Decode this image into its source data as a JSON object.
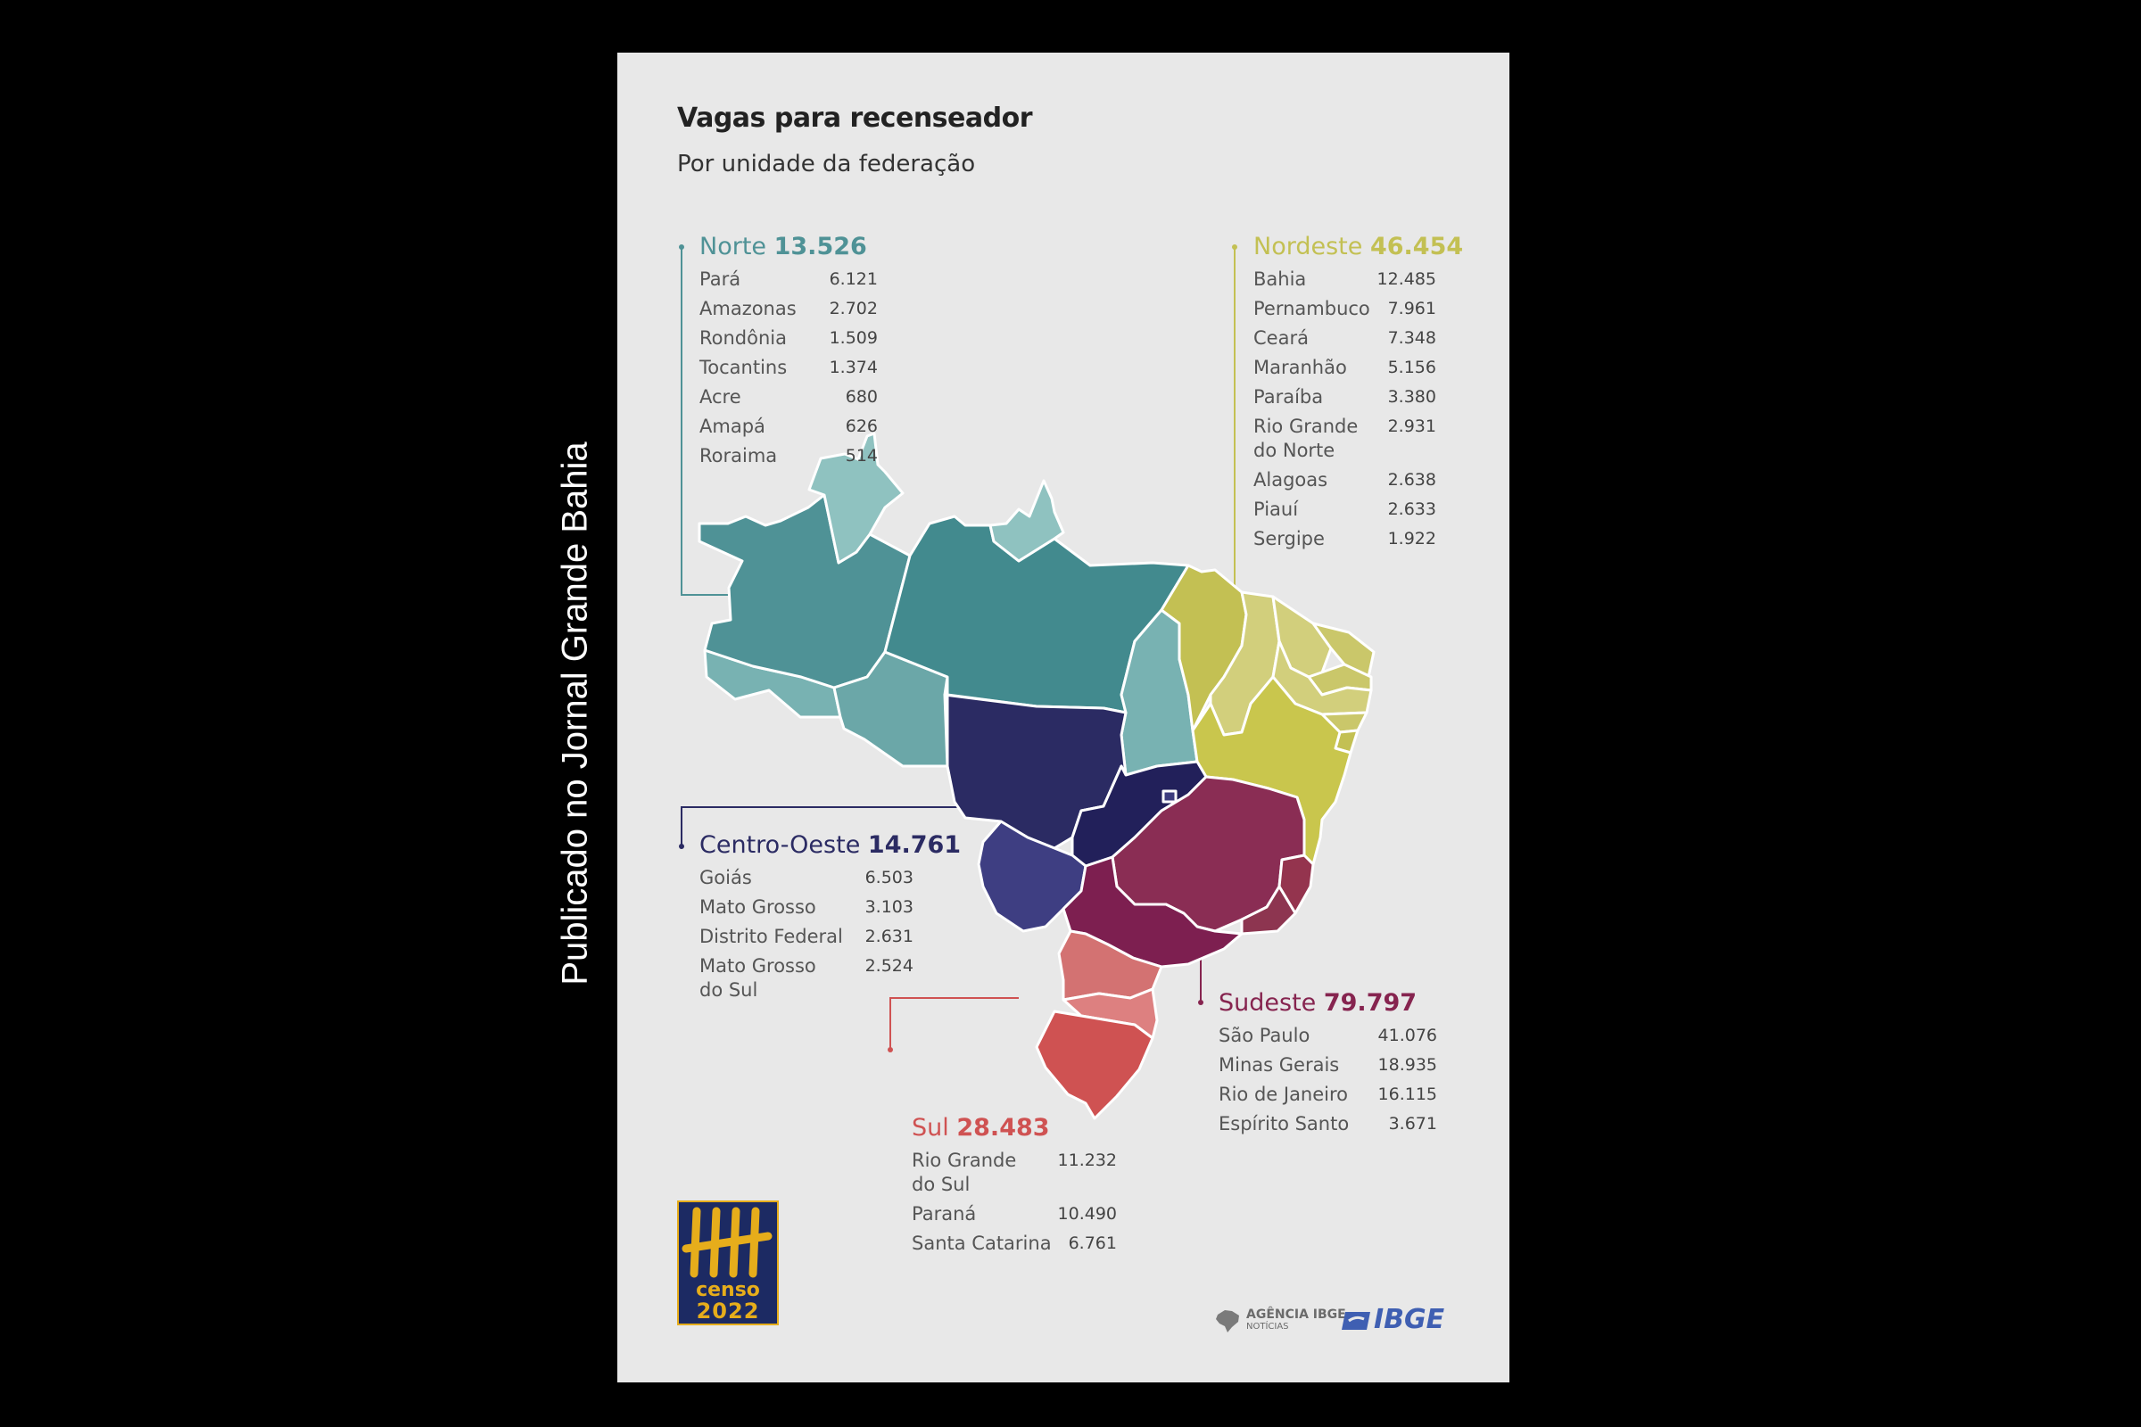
{
  "side_caption": "Publicado no Jornal Grande Bahia",
  "header": {
    "title": "Vagas para recenseador",
    "subtitle": "Por unidade da federação"
  },
  "regions": {
    "norte": {
      "name": "Norte",
      "total": "13.526",
      "color": "#4f9296",
      "states": [
        {
          "name": "Pará",
          "value": "6.121"
        },
        {
          "name": "Amazonas",
          "value": "2.702"
        },
        {
          "name": "Rondônia",
          "value": "1.509"
        },
        {
          "name": "Tocantins",
          "value": "1.374"
        },
        {
          "name": "Acre",
          "value": "680"
        },
        {
          "name": "Amapá",
          "value": "626"
        },
        {
          "name": "Roraima",
          "value": "514"
        }
      ]
    },
    "nordeste": {
      "name": "Nordeste",
      "total": "46.454",
      "color": "#c3c053",
      "states": [
        {
          "name": "Bahia",
          "value": "12.485"
        },
        {
          "name": "Pernambuco",
          "value": "7.961"
        },
        {
          "name": "Ceará",
          "value": "7.348"
        },
        {
          "name": "Maranhão",
          "value": "5.156"
        },
        {
          "name": "Paraíba",
          "value": "3.380"
        },
        {
          "name": "Rio Grande do Norte",
          "value": "2.931"
        },
        {
          "name": "Alagoas",
          "value": "2.638"
        },
        {
          "name": "Piauí",
          "value": "2.633"
        },
        {
          "name": "Sergipe",
          "value": "1.922"
        }
      ]
    },
    "centro_oeste": {
      "name": "Centro-Oeste",
      "total": "14.761",
      "color": "#2b2b63",
      "states": [
        {
          "name": "Goiás",
          "value": "6.503"
        },
        {
          "name": "Mato Grosso",
          "value": "3.103"
        },
        {
          "name": "Distrito Federal",
          "value": "2.631"
        },
        {
          "name": "Mato Grosso do Sul",
          "value": "2.524"
        }
      ]
    },
    "sudeste": {
      "name": "Sudeste",
      "total": "79.797",
      "color": "#86244f",
      "states": [
        {
          "name": "São Paulo",
          "value": "41.076"
        },
        {
          "name": "Minas Gerais",
          "value": "18.935"
        },
        {
          "name": "Rio de Janeiro",
          "value": "16.115"
        },
        {
          "name": "Espírito Santo",
          "value": "3.671"
        }
      ]
    },
    "sul": {
      "name": "Sul",
      "total": "28.483",
      "color": "#cf5252",
      "states": [
        {
          "name": "Rio Grande do Sul",
          "value": "11.232"
        },
        {
          "name": "Paraná",
          "value": "10.490"
        },
        {
          "name": "Santa Catarina",
          "value": "6.761"
        }
      ]
    }
  },
  "logos": {
    "censo_word": "censo",
    "censo_year": "2022",
    "agencia_line1": "AGÊNCIA IBGE",
    "agencia_line2": "NOTÍCIAS",
    "ibge": "IBGE"
  }
}
